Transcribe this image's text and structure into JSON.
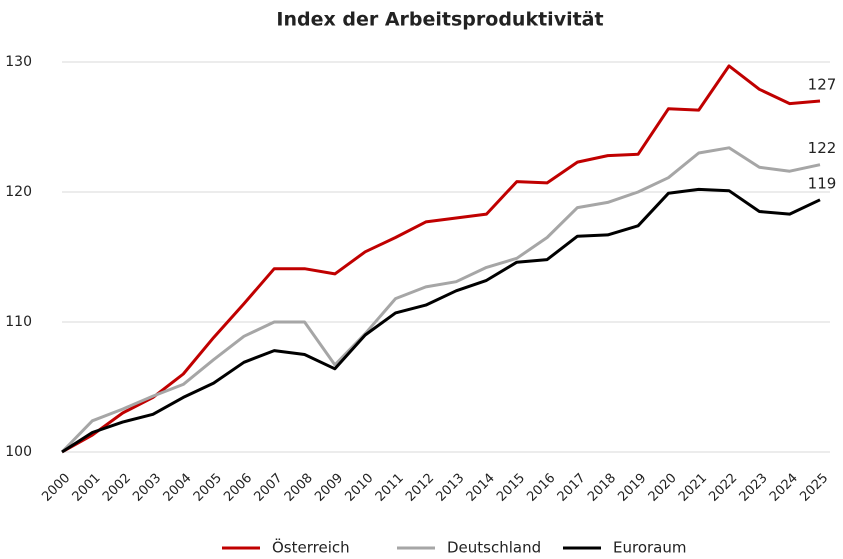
{
  "chart_data": {
    "type": "line",
    "title": "Index der Arbeitsproduktivität",
    "categories": [
      "2000",
      "2001",
      "2002",
      "2003",
      "2004",
      "2005",
      "2006",
      "2007",
      "2008",
      "2009",
      "2010",
      "2011",
      "2012",
      "2013",
      "2014",
      "2015",
      "2016",
      "2017",
      "2018",
      "2019",
      "2020",
      "2021",
      "2022",
      "2023",
      "2024",
      "2025"
    ],
    "series": [
      {
        "name": "Österreich",
        "color": "#c00000",
        "end_label": "127",
        "values": [
          100,
          101.3,
          103,
          104.2,
          106,
          108.8,
          111.4,
          114.1,
          114.1,
          113.7,
          115.4,
          116.5,
          117.7,
          118,
          118.3,
          120.8,
          120.7,
          122.3,
          122.8,
          122.9,
          126.4,
          126.3,
          129.7,
          127.9,
          126.8,
          127
        ]
      },
      {
        "name": "Deutschland",
        "color": "#a6a6a6",
        "end_label": "122",
        "values": [
          100,
          102.4,
          103.3,
          104.3,
          105.2,
          107.1,
          108.9,
          110,
          110,
          106.7,
          109.1,
          111.8,
          112.7,
          113.1,
          114.2,
          114.9,
          116.5,
          118.8,
          119.2,
          120,
          121.1,
          123,
          123.4,
          121.9,
          121.6,
          122.1
        ]
      },
      {
        "name": "Euroraum",
        "color": "#000000",
        "end_label": "119",
        "values": [
          100,
          101.5,
          102.3,
          102.9,
          104.2,
          105.3,
          106.9,
          107.8,
          107.5,
          106.4,
          109,
          110.7,
          111.3,
          112.4,
          113.2,
          114.6,
          114.8,
          116.6,
          116.7,
          117.4,
          119.9,
          120.2,
          120.1,
          118.5,
          118.3,
          119.4
        ]
      }
    ],
    "ylim": [
      100,
      130
    ],
    "yticks": [
      100,
      110,
      120,
      130
    ],
    "grid": true,
    "legend": "bottom"
  }
}
